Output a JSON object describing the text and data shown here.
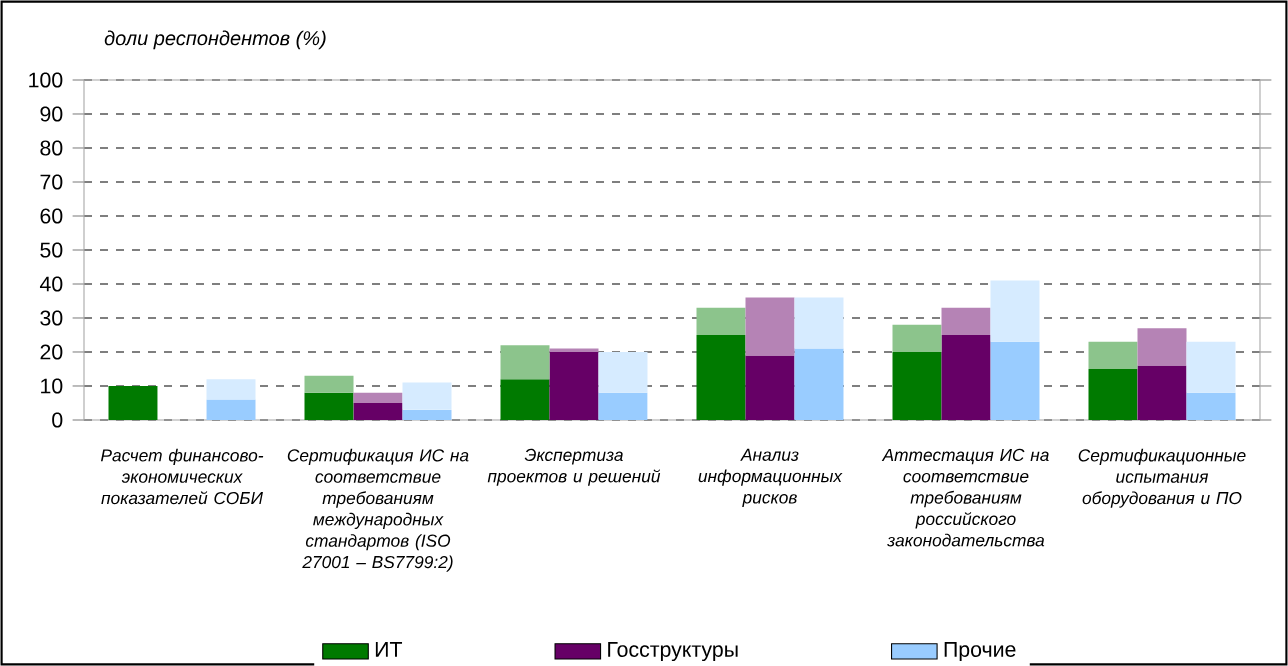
{
  "chart_data": {
    "type": "bar",
    "stacked": true,
    "ylabel": "доли респондентов (%)",
    "categories": [
      null,
      "Расчет финансово-экономических показателей СОБИ",
      null,
      null,
      null,
      "Сертификация ИС на соответствие требованиям международных стандартов (ISO 27001 – BS7799:2)",
      null,
      null,
      null,
      "Экспертиза проектов и решений",
      null,
      null,
      null,
      "Анализ информационных рисков",
      null,
      null,
      null,
      "Аттестация ИС на соответствие требованиям российского законодательства",
      null,
      null,
      null,
      "Сертификационные испытания оборудования и ПО",
      null,
      null
    ],
    "series": [
      {
        "name": "ИТ",
        "color": "#007a00",
        "values": [
          10,
          null,
          null,
          null,
          8,
          null,
          null,
          null,
          12,
          null,
          null,
          null,
          25,
          null,
          null,
          null,
          20,
          null,
          null,
          null,
          15,
          null,
          null,
          null
        ]
      },
      {
        "name": "Госструктуры",
        "color": "#660066",
        "values": [
          null,
          null,
          null,
          null,
          null,
          5,
          null,
          null,
          null,
          20,
          null,
          null,
          null,
          19,
          null,
          null,
          null,
          25,
          null,
          null,
          null,
          16,
          null,
          null
        ]
      },
      {
        "name": "Прочие",
        "color": "#99ccff",
        "values": [
          null,
          null,
          6,
          null,
          null,
          null,
          3,
          null,
          null,
          null,
          8,
          null,
          null,
          null,
          21,
          null,
          null,
          null,
          23,
          null,
          null,
          null,
          8,
          null
        ]
      },
      {
        "color": "#8cc48c",
        "values": [
          null,
          null,
          null,
          null,
          5,
          null,
          null,
          null,
          10,
          null,
          null,
          null,
          8,
          null,
          null,
          null,
          8,
          null,
          null,
          null,
          8,
          null,
          null,
          null
        ]
      },
      {
        "color": "#b583b5",
        "values": [
          null,
          null,
          null,
          null,
          null,
          3,
          null,
          null,
          null,
          1,
          null,
          null,
          null,
          17,
          null,
          null,
          null,
          8,
          null,
          null,
          null,
          11,
          null,
          null
        ]
      },
      {
        "color": "#d6ebff",
        "values": [
          null,
          null,
          6,
          null,
          null,
          null,
          8,
          null,
          null,
          null,
          12,
          null,
          null,
          null,
          15,
          null,
          null,
          null,
          18,
          null,
          null,
          null,
          15,
          null
        ]
      }
    ],
    "ylim": [
      0,
      100
    ],
    "yticks": [
      0,
      10,
      20,
      30,
      40,
      50,
      60,
      70,
      80,
      90,
      100
    ],
    "grid": "y",
    "legend": "bottom"
  }
}
